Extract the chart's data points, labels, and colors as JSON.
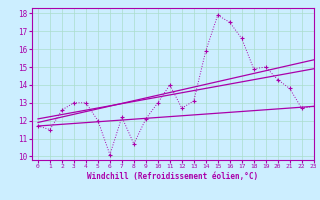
{
  "xlabel": "Windchill (Refroidissement éolien,°C)",
  "xlim": [
    -0.5,
    23
  ],
  "ylim": [
    9.8,
    18.3
  ],
  "xticks": [
    0,
    1,
    2,
    3,
    4,
    5,
    6,
    7,
    8,
    9,
    10,
    11,
    12,
    13,
    14,
    15,
    16,
    17,
    18,
    19,
    20,
    21,
    22,
    23
  ],
  "yticks": [
    10,
    11,
    12,
    13,
    14,
    15,
    16,
    17,
    18
  ],
  "bg_color": "#cceeff",
  "grid_color": "#aaddcc",
  "line_color": "#aa00aa",
  "line1_x": [
    0,
    1,
    2,
    3,
    4,
    5,
    6,
    7,
    8,
    9,
    10,
    11,
    12,
    13,
    14,
    15,
    16,
    17,
    18,
    19,
    20,
    21,
    22,
    23
  ],
  "line1_y": [
    11.7,
    11.5,
    12.6,
    13.0,
    13.0,
    12.0,
    10.1,
    12.2,
    10.7,
    12.1,
    13.0,
    14.0,
    12.7,
    13.1,
    15.9,
    17.9,
    17.5,
    16.6,
    14.9,
    15.0,
    14.3,
    13.8,
    12.7,
    12.8
  ],
  "line2_x": [
    0,
    23
  ],
  "line2_y": [
    11.7,
    12.8
  ],
  "line3_x": [
    0,
    23
  ],
  "line3_y": [
    11.9,
    15.4
  ],
  "line4_x": [
    0,
    23
  ],
  "line4_y": [
    12.1,
    14.9
  ]
}
